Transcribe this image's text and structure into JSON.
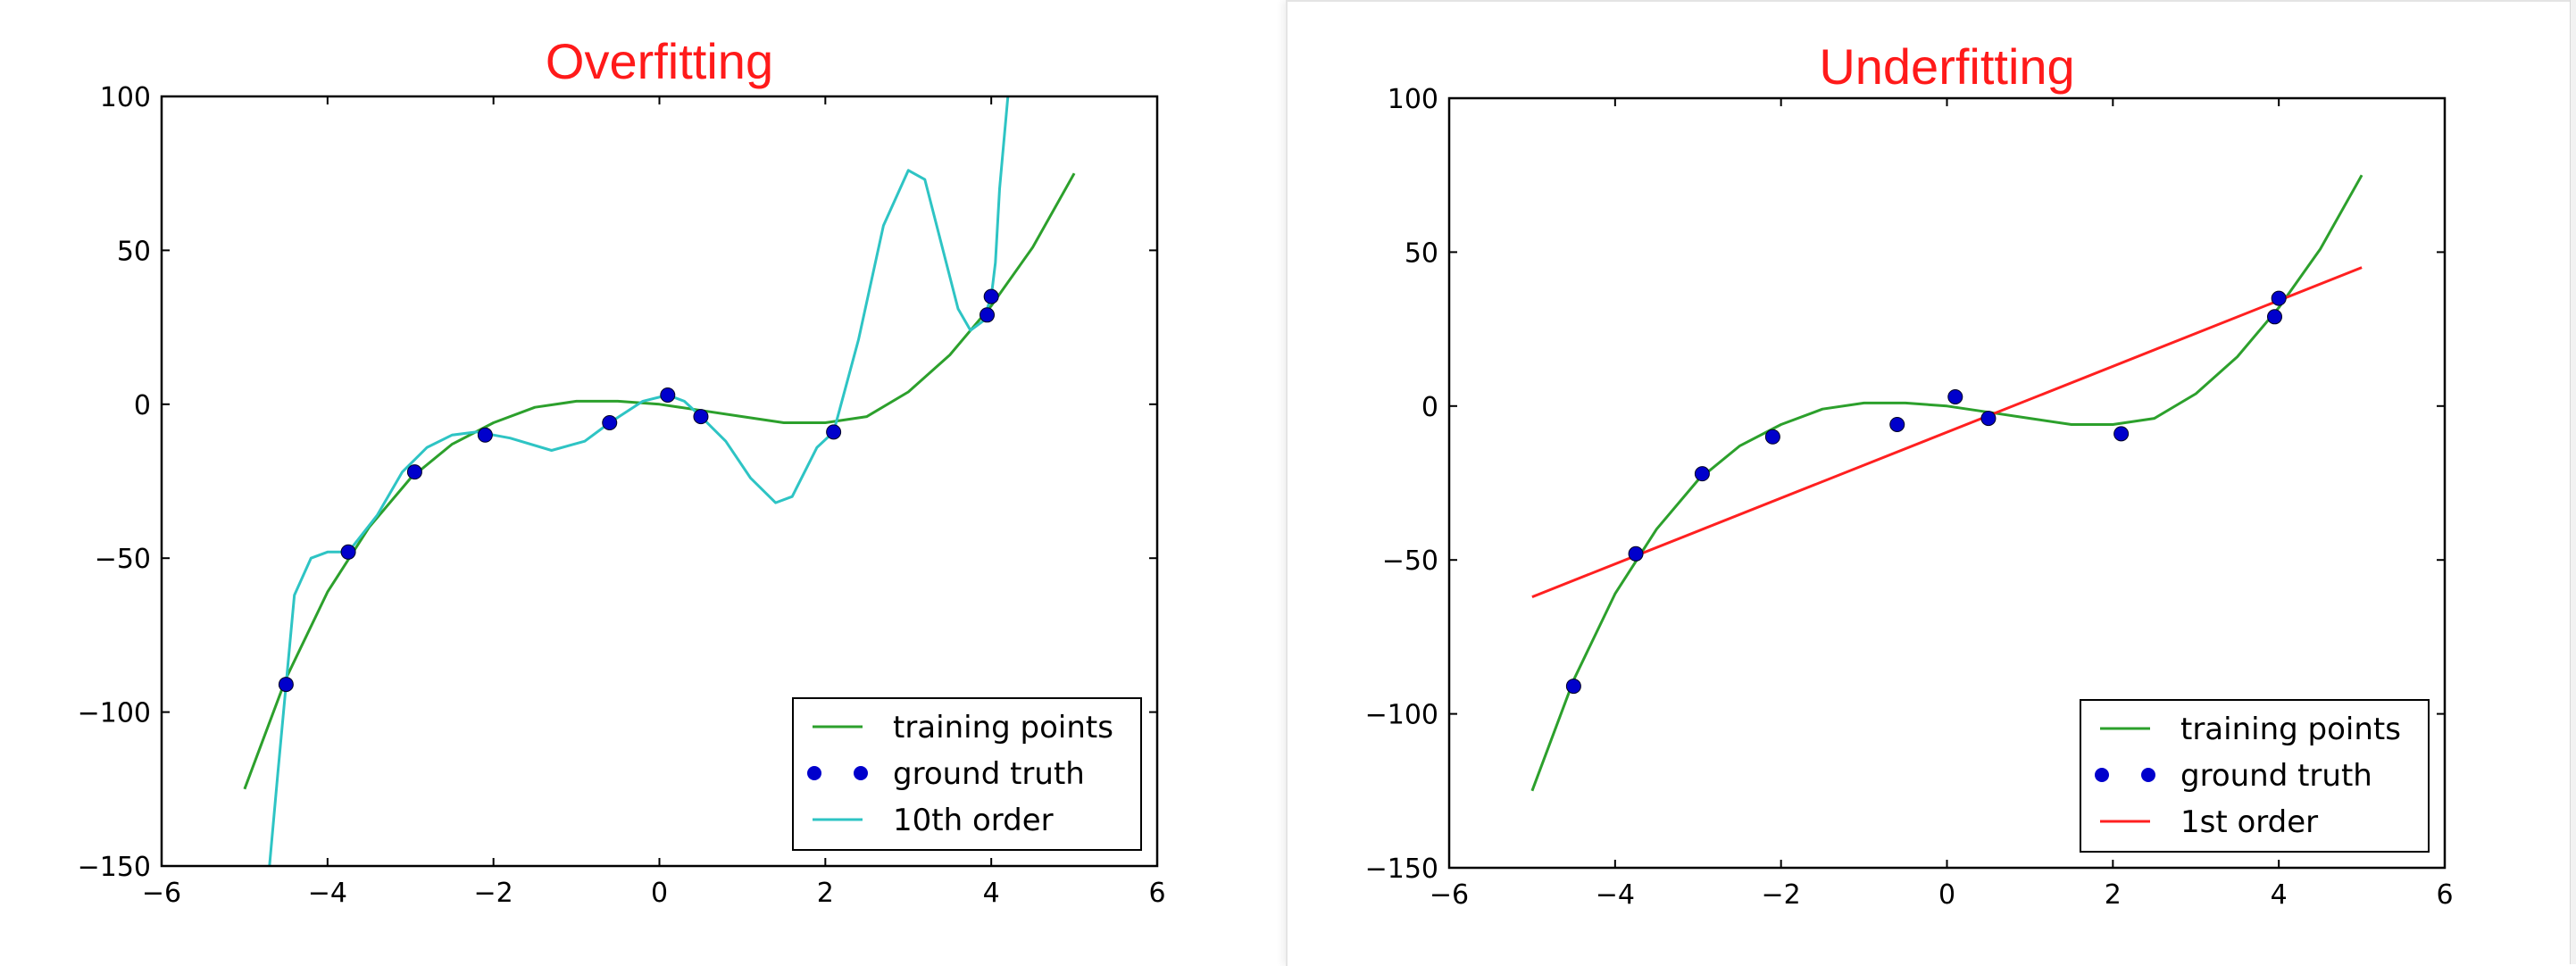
{
  "chart_data": [
    {
      "type": "line",
      "title": "Overfitting",
      "title_color": "#ff1a1a",
      "xlabel": "",
      "ylabel": "",
      "xlim": [
        -6,
        6
      ],
      "ylim": [
        -150,
        100
      ],
      "xticks": [
        -6,
        -4,
        -2,
        0,
        2,
        4,
        6
      ],
      "yticks": [
        100,
        50,
        0,
        -50,
        -100,
        -150
      ],
      "xtick_labels": [
        "−6",
        "−4",
        "−2",
        "0",
        "2",
        "4",
        "6"
      ],
      "ytick_labels": [
        "100",
        "50",
        "0",
        "−50",
        "−100",
        "−150"
      ],
      "grid": false,
      "legend_position": "lower-right",
      "series": [
        {
          "name": "training points",
          "style": "line",
          "color": "#2ca02c",
          "x": [
            -5,
            -4.5,
            -4,
            -3.5,
            -3,
            -2.5,
            -2,
            -1.5,
            -1,
            -0.5,
            0,
            0.5,
            1,
            1.5,
            2,
            2.5,
            3,
            3.5,
            4,
            4.5,
            5
          ],
          "y": [
            -125,
            -89,
            -61,
            -40,
            -24,
            -13,
            -6,
            -1,
            1,
            1,
            0,
            -2,
            -4,
            -6,
            -6,
            -4,
            4,
            16,
            32,
            51,
            75
          ]
        },
        {
          "name": "ground truth",
          "style": "points",
          "color": "#0000cc",
          "x": [
            -4.5,
            -3.75,
            -2.95,
            -2.1,
            -0.6,
            0.1,
            0.5,
            2.1,
            3.95,
            4.0
          ],
          "y": [
            -91,
            -48,
            -22,
            -10,
            -6,
            3,
            -4,
            -9,
            29,
            35
          ]
        },
        {
          "name": "10th order",
          "style": "line",
          "color": "#2ec4c4",
          "x": [
            -4.7,
            -4.6,
            -4.5,
            -4.4,
            -4.2,
            -4.0,
            -3.75,
            -3.4,
            -3.1,
            -2.8,
            -2.5,
            -2.2,
            -1.8,
            -1.3,
            -0.9,
            -0.6,
            -0.2,
            0.1,
            0.3,
            0.5,
            0.8,
            1.1,
            1.4,
            1.6,
            1.9,
            2.1,
            2.4,
            2.7,
            3.0,
            3.2,
            3.4,
            3.6,
            3.75,
            3.9,
            4.0,
            4.05,
            4.1,
            4.2
          ],
          "y": [
            -150,
            -120,
            -91,
            -62,
            -50,
            -48,
            -48,
            -36,
            -22,
            -14,
            -10,
            -9,
            -11,
            -15,
            -12,
            -6,
            1,
            3,
            1,
            -4,
            -12,
            -24,
            -32,
            -30,
            -14,
            -9,
            21,
            58,
            76,
            73,
            52,
            31,
            24,
            27,
            35,
            46,
            70,
            100
          ]
        }
      ],
      "legend": [
        "training points",
        "ground truth",
        "10th order"
      ]
    },
    {
      "type": "line",
      "title": "Underfitting",
      "title_color": "#ff1a1a",
      "xlabel": "",
      "ylabel": "",
      "xlim": [
        -6,
        6
      ],
      "ylim": [
        -150,
        100
      ],
      "xticks": [
        -6,
        -4,
        -2,
        0,
        2,
        4,
        6
      ],
      "yticks": [
        100,
        50,
        0,
        -50,
        -100,
        -150
      ],
      "xtick_labels": [
        "−6",
        "−4",
        "−2",
        "0",
        "2",
        "4",
        "6"
      ],
      "ytick_labels": [
        "100",
        "50",
        "0",
        "−50",
        "−100",
        "−150"
      ],
      "grid": false,
      "legend_position": "lower-right",
      "series": [
        {
          "name": "training points",
          "style": "line",
          "color": "#2ca02c",
          "x": [
            -5,
            -4.5,
            -4,
            -3.5,
            -3,
            -2.5,
            -2,
            -1.5,
            -1,
            -0.5,
            0,
            0.5,
            1,
            1.5,
            2,
            2.5,
            3,
            3.5,
            4,
            4.5,
            5
          ],
          "y": [
            -125,
            -89,
            -61,
            -40,
            -24,
            -13,
            -6,
            -1,
            1,
            1,
            0,
            -2,
            -4,
            -6,
            -6,
            -4,
            4,
            16,
            32,
            51,
            75
          ]
        },
        {
          "name": "ground truth",
          "style": "points",
          "color": "#0000cc",
          "x": [
            -4.5,
            -3.75,
            -2.95,
            -2.1,
            -0.6,
            0.1,
            0.5,
            2.1,
            3.95,
            4.0
          ],
          "y": [
            -91,
            -48,
            -22,
            -10,
            -6,
            3,
            -4,
            -9,
            29,
            35
          ]
        },
        {
          "name": "1st order",
          "style": "line",
          "color": "#ff2020",
          "x": [
            -5,
            5
          ],
          "y": [
            -62,
            45
          ]
        }
      ],
      "legend": [
        "training points",
        "ground truth",
        "1st order"
      ]
    }
  ]
}
